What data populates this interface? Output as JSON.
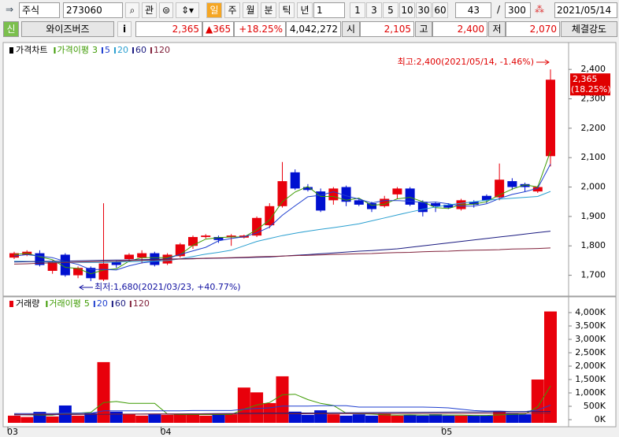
{
  "toolbar": {
    "market": "주식",
    "code": "273060",
    "button": "관",
    "periods": [
      "일",
      "주",
      "월",
      "분",
      "틱",
      "년"
    ],
    "unit": "1",
    "intervals": [
      "1",
      "3",
      "5",
      "10",
      "30",
      "60"
    ],
    "count": "43",
    "separator": "/",
    "total": "300",
    "date": "2021/05/14"
  },
  "quote": {
    "badge": "신",
    "name": "와이즈버즈",
    "info": "i",
    "price": "2,365",
    "change": "▲365",
    "rate": "+18.25%",
    "volume": "4,042,272",
    "open_label": "시",
    "open": "2,105",
    "high_label": "고",
    "high": "2,400",
    "low_label": "저",
    "low": "2,070",
    "strength": "체결강도"
  },
  "chart_data": [
    {
      "type": "candlestick",
      "legend_title": "가격차트",
      "ma_title": "가격이평",
      "up_color": "#e8000b",
      "down_color": "#0010d0",
      "open": [
        1760,
        1770,
        1775,
        1715,
        1770,
        1700,
        1725,
        1685,
        1745,
        1755,
        1760,
        1775,
        1740,
        1765,
        1800,
        1830,
        1830,
        1830,
        1828,
        1835,
        1870,
        1935,
        2050,
        2000,
        1985,
        1955,
        2000,
        1955,
        1945,
        1935,
        1975,
        1995,
        1950,
        1945,
        1940,
        1925,
        1950,
        1970,
        1965,
        2020,
        2010,
        1985,
        2105
      ],
      "high": [
        1780,
        1785,
        1785,
        1750,
        1775,
        1730,
        1730,
        1945,
        1750,
        1775,
        1785,
        1780,
        1775,
        1810,
        1835,
        1840,
        1835,
        1840,
        1838,
        1900,
        1945,
        2085,
        2060,
        2010,
        1995,
        2000,
        2005,
        1960,
        1950,
        1970,
        2000,
        2000,
        1955,
        1950,
        1945,
        1960,
        1955,
        1975,
        2080,
        2030,
        2015,
        2005,
        2400
      ],
      "low": [
        1755,
        1765,
        1730,
        1705,
        1695,
        1690,
        1680,
        1680,
        1725,
        1750,
        1740,
        1730,
        1735,
        1760,
        1790,
        1825,
        1810,
        1800,
        1825,
        1830,
        1860,
        1930,
        1990,
        1985,
        1915,
        1940,
        1935,
        1935,
        1915,
        1930,
        1960,
        1935,
        1900,
        1915,
        1925,
        1920,
        1930,
        1945,
        1955,
        1990,
        1985,
        1980,
        2070
      ],
      "close": [
        1775,
        1780,
        1735,
        1745,
        1700,
        1725,
        1690,
        1740,
        1735,
        1770,
        1775,
        1735,
        1770,
        1805,
        1830,
        1835,
        1820,
        1835,
        1835,
        1895,
        1935,
        2020,
        1995,
        1990,
        1920,
        1995,
        1950,
        1940,
        1925,
        1960,
        1995,
        1940,
        1915,
        1935,
        1930,
        1955,
        1940,
        1955,
        2025,
        2000,
        2000,
        2000,
        2365
      ],
      "series": [
        {
          "name": "3",
          "color": "#3c9a00",
          "values": [
            1770,
            1775,
            1763,
            1753,
            1727,
            1723,
            1705,
            1718,
            1722,
            1748,
            1760,
            1760,
            1760,
            1770,
            1802,
            1823,
            1828,
            1830,
            1830,
            1855,
            1888,
            1950,
            1983,
            2002,
            1968,
            1968,
            1955,
            1962,
            1938,
            1942,
            1960,
            1965,
            1950,
            1930,
            1927,
            1940,
            1942,
            1950,
            1973,
            1993,
            2008,
            2000,
            2122
          ]
        },
        {
          "name": "5",
          "color": "#1f3fcf",
          "values": [
            1765,
            1770,
            1765,
            1760,
            1747,
            1737,
            1719,
            1720,
            1718,
            1732,
            1742,
            1747,
            1757,
            1771,
            1783,
            1795,
            1817,
            1825,
            1831,
            1844,
            1864,
            1904,
            1936,
            1967,
            1972,
            1984,
            1970,
            1959,
            1946,
            1954,
            1954,
            1952,
            1947,
            1949,
            1943,
            1935,
            1935,
            1943,
            1961,
            1975,
            1984,
            1996,
            2078
          ]
        },
        {
          "name": "20",
          "color": "#2a9fd0",
          "values": [
            1748,
            1747,
            1746,
            1745,
            1744,
            1744,
            1744,
            1744,
            1745,
            1746,
            1747,
            1748,
            1750,
            1756,
            1764,
            1772,
            1778,
            1785,
            1800,
            1815,
            1825,
            1835,
            1843,
            1850,
            1856,
            1862,
            1868,
            1875,
            1885,
            1895,
            1905,
            1915,
            1924,
            1932,
            1939,
            1945,
            1950,
            1955,
            1959,
            1962,
            1965,
            1968,
            1985
          ]
        },
        {
          "name": "60",
          "color": "#1a1a80",
          "values": [
            1745,
            1746,
            1747,
            1748,
            1748,
            1749,
            1750,
            1751,
            1752,
            1752,
            1753,
            1754,
            1755,
            1756,
            1757,
            1757,
            1758,
            1759,
            1760,
            1761,
            1762,
            1765,
            1768,
            1770,
            1773,
            1776,
            1779,
            1782,
            1784,
            1787,
            1790,
            1795,
            1800,
            1805,
            1810,
            1815,
            1820,
            1825,
            1830,
            1835,
            1840,
            1845,
            1850
          ]
        },
        {
          "name": "120",
          "color": "#80203a",
          "values": [
            1738,
            1739,
            1741,
            1742,
            1743,
            1745,
            1746,
            1747,
            1748,
            1750,
            1751,
            1752,
            1754,
            1755,
            1756,
            1758,
            1759,
            1760,
            1761,
            1763,
            1764,
            1765,
            1767,
            1768,
            1769,
            1771,
            1772,
            1773,
            1774,
            1776,
            1777,
            1778,
            1780,
            1781,
            1782,
            1784,
            1785,
            1786,
            1787,
            1789,
            1790,
            1791,
            1793
          ]
        }
      ],
      "ylim": [
        1640,
        2470
      ],
      "yticks": [
        {
          "value": 1700,
          "label": "1,700"
        },
        {
          "value": 1800,
          "label": "1,800"
        },
        {
          "value": 1900,
          "label": "1,900"
        },
        {
          "value": 2000,
          "label": "2,000"
        },
        {
          "value": 2100,
          "label": "2,100"
        },
        {
          "value": 2200,
          "label": "2,200"
        },
        {
          "value": 2300,
          "label": "2,300"
        },
        {
          "value": 2400,
          "label": "2,400"
        }
      ],
      "last_price": {
        "value": 2365,
        "label": "2,365"
      },
      "last_change": "(18.25%)",
      "annotations": [
        "최고:2,400(2021/05/14, -1.46%)",
        "최저:1,680(2021/03/23, +40.77%)"
      ]
    },
    {
      "type": "bar",
      "legend_title": "거래량",
      "ma_title": "거래이평",
      "legend_color": "#e8000b",
      "categories": [
        "03",
        null,
        null,
        null,
        null,
        null,
        null,
        null,
        null,
        null,
        null,
        null,
        "04",
        null,
        null,
        null,
        null,
        null,
        null,
        null,
        null,
        null,
        null,
        null,
        null,
        null,
        null,
        null,
        null,
        null,
        null,
        null,
        null,
        null,
        "05",
        null,
        null,
        null,
        null,
        null,
        null,
        null,
        null
      ],
      "values": [
        150000,
        100000,
        290000,
        120000,
        530000,
        150000,
        250000,
        2150000,
        300000,
        220000,
        150000,
        200000,
        180000,
        200000,
        230000,
        150000,
        180000,
        200000,
        1200000,
        1020000,
        620000,
        1620000,
        300000,
        180000,
        350000,
        200000,
        150000,
        200000,
        150000,
        220000,
        150000,
        180000,
        150000,
        200000,
        150000,
        150000,
        150000,
        150000,
        300000,
        250000,
        200000,
        1500000,
        4042272
      ],
      "series": [
        {
          "name": "5",
          "color": "#3c9a00",
          "values": [
            200000,
            180000,
            170000,
            170000,
            240000,
            240000,
            270000,
            640000,
            680000,
            610000,
            610000,
            610000,
            210000,
            190000,
            190000,
            190000,
            190000,
            190000,
            390000,
            550000,
            640000,
            930000,
            950000,
            750000,
            610000,
            530000,
            240000,
            220000,
            210000,
            180000,
            170000,
            180000,
            170000,
            180000,
            170000,
            170000,
            160000,
            160000,
            180000,
            200000,
            210000,
            480000,
            1260000
          ]
        },
        {
          "name": "20",
          "color": "#1f3fcf",
          "values": [
            230000,
            230000,
            230000,
            230000,
            240000,
            240000,
            240000,
            330000,
            330000,
            330000,
            330000,
            330000,
            330000,
            330000,
            340000,
            340000,
            340000,
            340000,
            390000,
            420000,
            440000,
            510000,
            510000,
            510000,
            520000,
            520000,
            520000,
            470000,
            470000,
            470000,
            470000,
            470000,
            470000,
            460000,
            440000,
            390000,
            340000,
            320000,
            320000,
            300000,
            300000,
            360000,
            540000
          ]
        },
        {
          "name": "60",
          "color": "#1a1a80",
          "values": [
            180000,
            183000,
            186000,
            189000,
            192000,
            195000,
            198000,
            201000,
            204000,
            207000,
            210000,
            213000,
            216000,
            219000,
            222000,
            225000,
            228000,
            231000,
            234000,
            237000,
            240000,
            243000,
            246000,
            249000,
            252000,
            255000,
            258000,
            261000,
            264000,
            267000,
            270000,
            273000,
            276000,
            279000,
            282000,
            285000,
            288000,
            291000,
            294000,
            297000,
            300000,
            303000,
            306000
          ]
        },
        {
          "name": "120",
          "color": "#80203a",
          "values": [
            200000,
            201000,
            202000,
            203000,
            204000,
            205000,
            206000,
            207000,
            208000,
            209000,
            210000,
            211000,
            212000,
            213000,
            214000,
            215000,
            216000,
            217000,
            218000,
            219000,
            220000,
            221000,
            222000,
            223000,
            224000,
            225000,
            226000,
            227000,
            228000,
            229000,
            230000,
            231000,
            232000,
            233000,
            234000,
            235000,
            236000,
            237000,
            238000,
            239000,
            240000,
            241000,
            242000
          ]
        }
      ],
      "ylim": [
        0,
        4200000
      ],
      "yticks": [
        {
          "value": 0,
          "label": "0K"
        },
        {
          "value": 500000,
          "label": "500K"
        },
        {
          "value": 1000000,
          "label": "1,000K"
        },
        {
          "value": 1500000,
          "label": "1,500K"
        },
        {
          "value": 2000000,
          "label": "2,000K"
        },
        {
          "value": 2500000,
          "label": "2,500K"
        },
        {
          "value": 3000000,
          "label": "3,000K"
        },
        {
          "value": 3500000,
          "label": "3,500K"
        },
        {
          "value": 4000000,
          "label": "4,000K"
        }
      ]
    }
  ]
}
